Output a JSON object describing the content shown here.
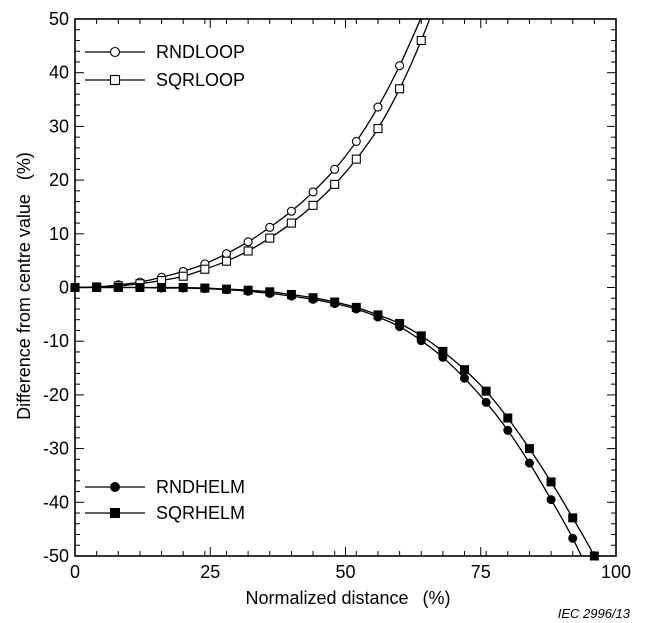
{
  "chart_data": {
    "type": "line",
    "xlabel": "Normalized distance",
    "xunit": "(%)",
    "ylabel": "Difference from centre value",
    "yunit": "(%)",
    "xlim": [
      0,
      100
    ],
    "ylim": [
      -50,
      50
    ],
    "x_ticks": [
      0,
      25,
      50,
      75,
      100
    ],
    "y_ticks": [
      -50,
      -40,
      -30,
      -20,
      -10,
      0,
      10,
      20,
      30,
      40,
      50
    ],
    "grid": false,
    "legend_placement": [
      "top-left",
      "bottom-left"
    ],
    "series": [
      {
        "name": "RNDLOOP",
        "marker": "open-circle",
        "x": [
          0,
          4,
          8,
          12,
          16,
          20,
          24,
          28,
          32,
          36,
          40,
          44,
          48,
          52,
          56,
          60
        ],
        "y": [
          0,
          0.1,
          0.5,
          1.0,
          1.9,
          3.0,
          4.4,
          6.3,
          8.5,
          11.2,
          14.2,
          17.8,
          22.0,
          27.2,
          33.6,
          41.3
        ]
      },
      {
        "name": "SQRLOOP",
        "marker": "open-square",
        "x": [
          0,
          4,
          8,
          12,
          16,
          20,
          24,
          28,
          32,
          36,
          40,
          44,
          48,
          52,
          56,
          60,
          64
        ],
        "y": [
          0,
          0.1,
          0.3,
          0.7,
          1.3,
          2.1,
          3.4,
          4.9,
          6.8,
          9.2,
          12.0,
          15.3,
          19.2,
          23.9,
          29.6,
          37.0,
          46.0
        ]
      },
      {
        "name": "RNDHELM",
        "marker": "filled-circle",
        "x": [
          0,
          4,
          8,
          12,
          16,
          20,
          24,
          28,
          32,
          36,
          40,
          44,
          48,
          52,
          56,
          60,
          64,
          68,
          72,
          76,
          80,
          84,
          88,
          92
        ],
        "y": [
          0,
          0,
          0,
          0,
          -0.1,
          -0.1,
          -0.2,
          -0.4,
          -0.7,
          -1.1,
          -1.6,
          -2.2,
          -3.0,
          -4.0,
          -5.5,
          -7.3,
          -9.9,
          -13.0,
          -16.9,
          -21.4,
          -26.6,
          -32.7,
          -39.5,
          -46.7
        ]
      },
      {
        "name": "SQRHELM",
        "marker": "filled-square",
        "x": [
          0,
          4,
          8,
          12,
          16,
          20,
          24,
          28,
          32,
          36,
          40,
          44,
          48,
          52,
          56,
          60,
          64,
          68,
          72,
          76,
          80,
          84,
          88,
          92,
          96
        ],
        "y": [
          0,
          0,
          0,
          0,
          0,
          0,
          -0.1,
          -0.3,
          -0.5,
          -0.8,
          -1.3,
          -1.9,
          -2.7,
          -3.7,
          -5.1,
          -6.7,
          -9.0,
          -11.9,
          -15.3,
          -19.3,
          -24.3,
          -30.0,
          -36.2,
          -42.9,
          -50.0
        ]
      }
    ],
    "credit": "IEC   2996/13"
  }
}
